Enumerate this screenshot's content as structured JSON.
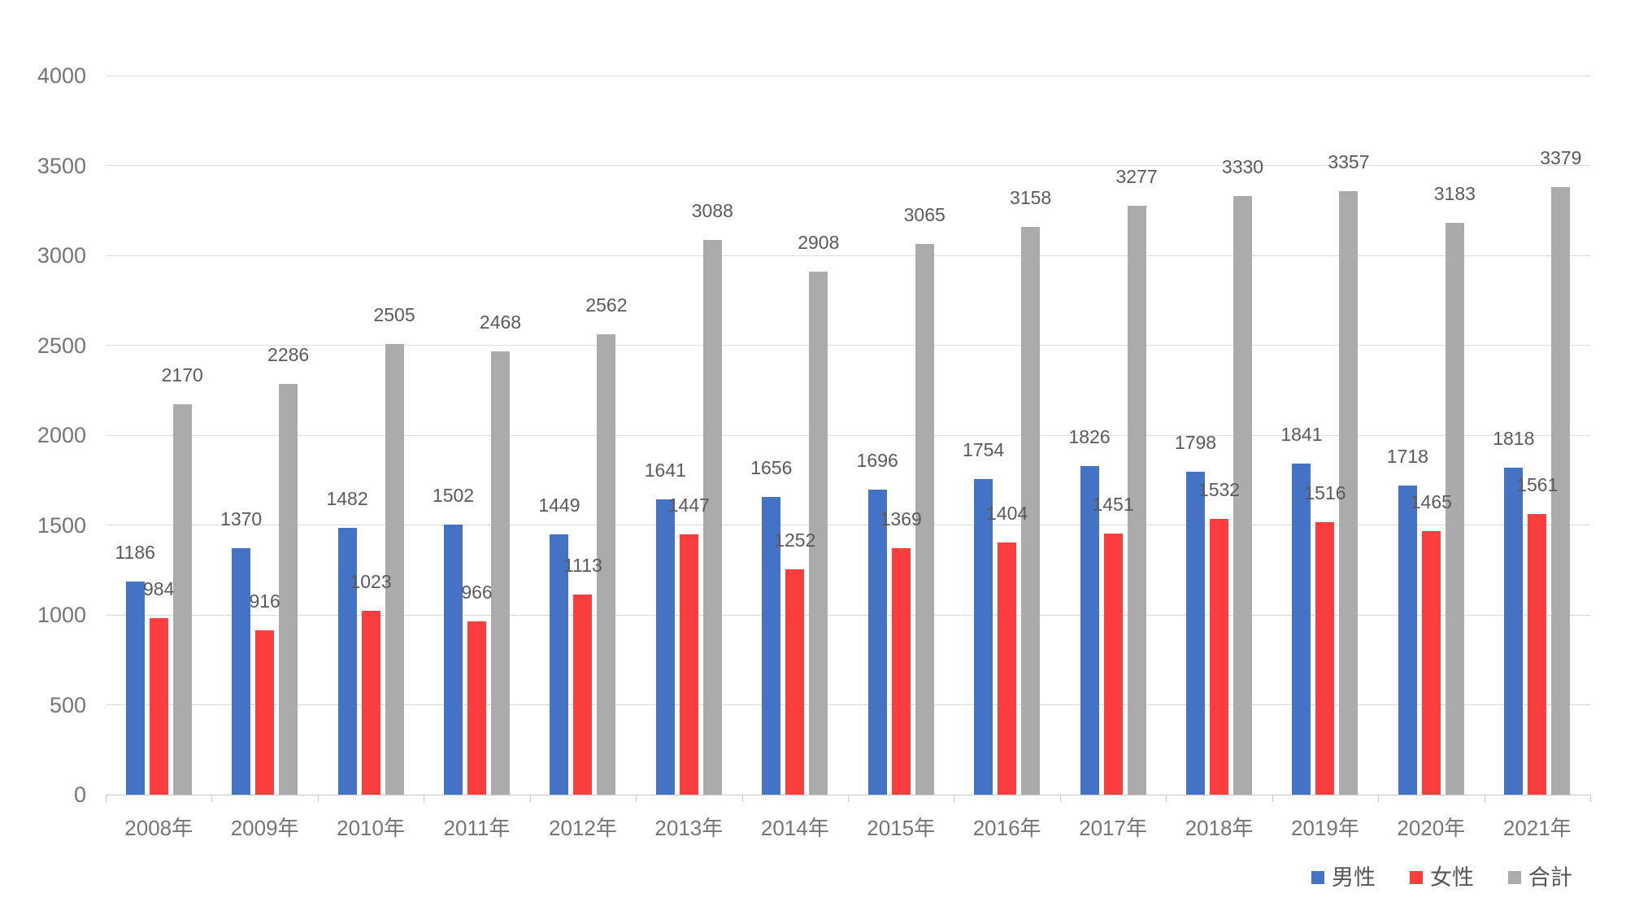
{
  "chart_data": {
    "type": "bar",
    "categories": [
      "2008年",
      "2009年",
      "2010年",
      "2011年",
      "2012年",
      "2013年",
      "2014年",
      "2015年",
      "2016年",
      "2017年",
      "2018年",
      "2019年",
      "2020年",
      "2021年"
    ],
    "series": [
      {
        "name": "男性",
        "color": "#4472C4",
        "values": [
          1186,
          1370,
          1482,
          1502,
          1449,
          1641,
          1656,
          1696,
          1754,
          1826,
          1798,
          1841,
          1718,
          1818
        ]
      },
      {
        "name": "女性",
        "color": "#FB3D3D",
        "values": [
          984,
          916,
          1023,
          966,
          1113,
          1447,
          1252,
          1369,
          1404,
          1451,
          1532,
          1516,
          1465,
          1561
        ]
      },
      {
        "name": "合計",
        "color": "#ABABAB",
        "values": [
          2170,
          2286,
          2505,
          2468,
          2562,
          3088,
          2908,
          3065,
          3158,
          3277,
          3330,
          3357,
          3183,
          3379
        ]
      }
    ],
    "title": "",
    "xlabel": "",
    "ylabel": "",
    "ylim": [
      0,
      4000
    ],
    "ytick_step": 500,
    "ytick_labels": [
      "0",
      "500",
      "1000",
      "1500",
      "2000",
      "2500",
      "3000",
      "3500",
      "4000"
    ],
    "grid": true,
    "value_labels": true,
    "legend_position": "bottom-right"
  },
  "colors": {
    "background": "#FFFFFF",
    "gridline": "#DCDCDC",
    "axis_line": "#C9C9C9",
    "axis_text": "#757575",
    "value_label_text": "#5A5A5A",
    "legend_text": "#555555"
  }
}
